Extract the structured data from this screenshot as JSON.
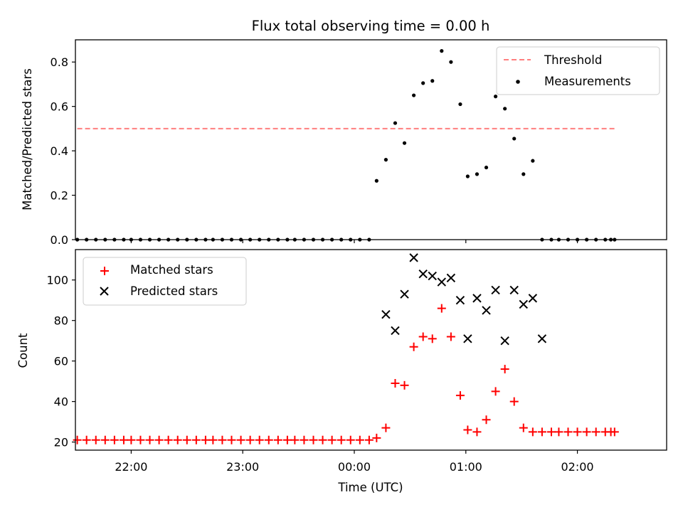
{
  "chart_data": [
    {
      "type": "scatter",
      "title": "Flux total observing time = 0.00 h",
      "xlabel": "",
      "ylabel": "Matched/Predicted stars",
      "xlim": [
        -150,
        168
      ],
      "ylim": [
        0,
        0.9
      ],
      "yticks": [
        0.0,
        0.2,
        0.4,
        0.6,
        0.8
      ],
      "ytick_labels": [
        "0.0",
        "0.2",
        "0.4",
        "0.6",
        "0.8"
      ],
      "xticks": [
        -120,
        -60,
        0,
        60,
        120
      ],
      "xtick_labels": [
        "",
        "",
        "",
        "",
        ""
      ],
      "x_unit": "minutes relative to 00:00 UTC",
      "legend_position": "upper right",
      "threshold": {
        "name": "Threshold",
        "y": 0.5,
        "x_range": [
          -149,
          140
        ],
        "color": "#ff7f7f",
        "style": "dashed"
      },
      "series": [
        {
          "name": "Measurements",
          "marker": "dot",
          "color": "#000000",
          "x": [
            -149,
            -144,
            -139,
            -134,
            -129,
            -124,
            -120,
            -115,
            -110,
            -105,
            -100,
            -95,
            -90,
            -85,
            -80,
            -76,
            -71,
            -66,
            -61,
            -56,
            -51,
            -46,
            -41,
            -36,
            -32,
            -27,
            -22,
            -17,
            -12,
            -7,
            -2,
            3,
            8,
            12,
            17,
            22,
            27,
            32,
            37,
            42,
            47,
            52,
            57,
            61,
            66,
            71,
            76,
            81,
            86,
            91,
            96,
            101,
            106,
            110,
            115,
            120,
            125,
            130,
            135,
            138,
            140
          ],
          "y": [
            0,
            0,
            0,
            0,
            0,
            0,
            0,
            0,
            0,
            0,
            0,
            0,
            0,
            0,
            0,
            0,
            0,
            0,
            0,
            0,
            0,
            0,
            0,
            0,
            0,
            0,
            0,
            0,
            0,
            0,
            0,
            0,
            0,
            0.265,
            0.36,
            0.525,
            0.435,
            0.65,
            0.705,
            0.715,
            0.85,
            0.8,
            0.61,
            0.285,
            0.295,
            0.325,
            0.645,
            0.59,
            0.455,
            0.295,
            0.355,
            0,
            0,
            0,
            0,
            0,
            0,
            0,
            0,
            0,
            0
          ]
        }
      ]
    },
    {
      "type": "scatter",
      "title": "",
      "xlabel": "Time (UTC)",
      "ylabel": "Count",
      "xlim": [
        -150,
        168
      ],
      "ylim": [
        16,
        115
      ],
      "yticks": [
        20,
        40,
        60,
        80,
        100
      ],
      "ytick_labels": [
        "20",
        "40",
        "60",
        "80",
        "100"
      ],
      "xticks": [
        -120,
        -60,
        0,
        60,
        120
      ],
      "xtick_labels": [
        "22:00",
        "23:00",
        "00:00",
        "01:00",
        "02:00"
      ],
      "x_unit": "minutes relative to 00:00 UTC",
      "legend_position": "upper left",
      "series": [
        {
          "name": "Matched stars",
          "marker": "plus",
          "color": "#ff0000",
          "x": [
            -149,
            -144,
            -139,
            -134,
            -129,
            -124,
            -120,
            -115,
            -110,
            -105,
            -100,
            -95,
            -90,
            -85,
            -80,
            -76,
            -71,
            -66,
            -61,
            -56,
            -51,
            -46,
            -41,
            -36,
            -32,
            -27,
            -22,
            -17,
            -12,
            -7,
            -2,
            3,
            8,
            12,
            17,
            22,
            27,
            32,
            37,
            42,
            47,
            52,
            57,
            61,
            66,
            71,
            76,
            81,
            86,
            91,
            96,
            101,
            106,
            110,
            115,
            120,
            125,
            130,
            135,
            138,
            140
          ],
          "y": [
            21,
            21,
            21,
            21,
            21,
            21,
            21,
            21,
            21,
            21,
            21,
            21,
            21,
            21,
            21,
            21,
            21,
            21,
            21,
            21,
            21,
            21,
            21,
            21,
            21,
            21,
            21,
            21,
            21,
            21,
            21,
            21,
            21,
            22,
            27,
            49,
            48,
            67,
            72,
            71,
            86,
            72,
            43,
            26,
            25,
            31,
            45,
            56,
            40,
            27,
            25,
            25,
            25,
            25,
            25,
            25,
            25,
            25,
            25,
            25,
            25
          ]
        },
        {
          "name": "Predicted stars",
          "marker": "x",
          "color": "#000000",
          "x": [
            17,
            22,
            27,
            32,
            37,
            42,
            47,
            52,
            57,
            61,
            66,
            71,
            76,
            81,
            86,
            91,
            96
          ],
          "y": [
            83,
            75,
            93,
            111,
            103,
            102,
            99,
            101,
            90,
            71,
            91,
            85,
            95,
            70,
            95,
            88,
            91
          ]
        },
        {
          "name": "",
          "marker": "x",
          "color": "#000000",
          "x": [
            101
          ],
          "y": [
            71
          ]
        }
      ]
    }
  ]
}
